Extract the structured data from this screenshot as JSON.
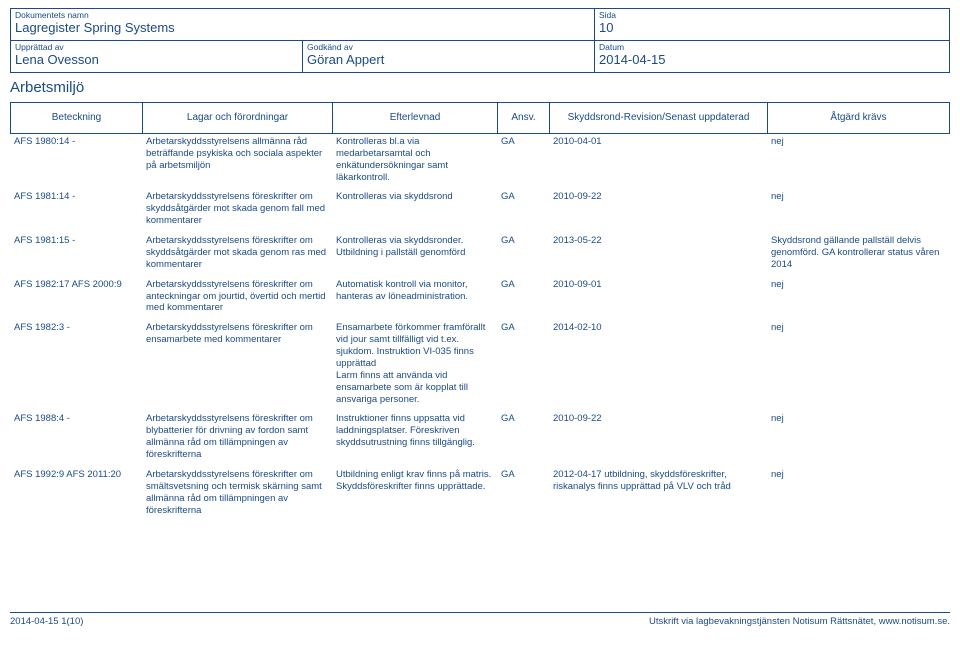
{
  "header": {
    "docname_label": "Dokumentets namn",
    "docname": "Lagregister Spring Systems",
    "page_label": "Sida",
    "page": "10",
    "created_by_label": "Upprättad av",
    "created_by": "Lena Ovesson",
    "approved_by_label": "Godkänd av",
    "approved_by": "Göran Appert",
    "date_label": "Datum",
    "date": "2014-04-15"
  },
  "section_title": "Arbetsmiljö",
  "columns": {
    "c1": "Beteckning",
    "c2": "Lagar och förordningar",
    "c3": "Efterlevnad",
    "c4": "Ansv.",
    "c5": "Skyddsrond-Revision/Senast uppdaterad",
    "c6": "Åtgärd krävs"
  },
  "rows": [
    {
      "c1": "AFS 1980:14 -",
      "c2": "Arbetarskyddsstyrelsens allmänna råd beträffande psykiska och sociala aspekter på arbetsmiljön",
      "c3": "Kontrolleras bl.a via medarbetarsamtal och enkätundersökningar samt läkarkontroll.",
      "c4": "GA",
      "c5": "2010-04-01",
      "c6": "nej"
    },
    {
      "c1": "AFS 1981:14 -",
      "c2": "Arbetarskyddsstyrelsens föreskrifter om skyddsåtgärder mot skada genom fall med kommentarer",
      "c3": "Kontrolleras via skyddsrond",
      "c4": "GA",
      "c5": "2010-09-22",
      "c6": "nej"
    },
    {
      "c1": "AFS 1981:15 -",
      "c2": "Arbetarskyddsstyrelsens föreskrifter om skyddsåtgärder mot skada genom ras med kommentarer",
      "c3": "Kontrolleras via skyddsronder. Utbildning i pallställ genomförd",
      "c4": "GA",
      "c5": "2013-05-22",
      "c6": "Skyddsrond gällande pallställ delvis genomförd. GA kontrollerar status våren 2014"
    },
    {
      "c1": "AFS 1982:17 AFS 2000:9",
      "c2": "Arbetarskyddsstyrelsens föreskrifter om anteckningar om jourtid, övertid och mertid med kommentarer",
      "c3": "Automatisk kontroll via monitor, hanteras av löneadministration.",
      "c4": "GA",
      "c5": "2010-09-01",
      "c6": "nej"
    },
    {
      "c1": "AFS 1982:3 -",
      "c2": "Arbetarskyddsstyrelsens föreskrifter om ensamarbete med kommentarer",
      "c3": "Ensamarbete förkommer framförallt vid jour samt tillfälligt vid t.ex. sjukdom. Instruktion VI-035 finns upprättad\nLarm finns att använda vid ensamarbete som är kopplat till ansvariga personer.",
      "c4": "GA",
      "c5": "2014-02-10",
      "c6": "nej"
    },
    {
      "c1": "AFS 1988:4 -",
      "c2": "Arbetarskyddsstyrelsens föreskrifter om blybatterier för drivning av fordon samt allmänna råd om tillämpningen av föreskrifterna",
      "c3": "Instruktioner finns uppsatta vid laddningsplatser. Föreskriven skyddsutrustning finns tillgänglig.",
      "c4": "GA",
      "c5": "2010-09-22",
      "c6": "nej"
    },
    {
      "c1": "AFS 1992:9 AFS 2011:20",
      "c2": "Arbetarskyddsstyrelsens föreskrifter om smältsvetsning och termisk skärning samt allmänna råd om tillämpningen av föreskrifterna",
      "c3": "Utbildning enligt krav finns på matris. Skyddsföreskrifter finns upprättade.",
      "c4": "GA",
      "c5": "2012-04-17 utbildning, skyddsföreskrifter, riskanalys finns upprättad på VLV och tråd",
      "c6": "nej"
    }
  ],
  "footer": {
    "left": "2014-04-15   1(10)",
    "right": "Utskrift via lagbevakningstjänsten Notisum Rättsnätet, www.notisum.se."
  }
}
